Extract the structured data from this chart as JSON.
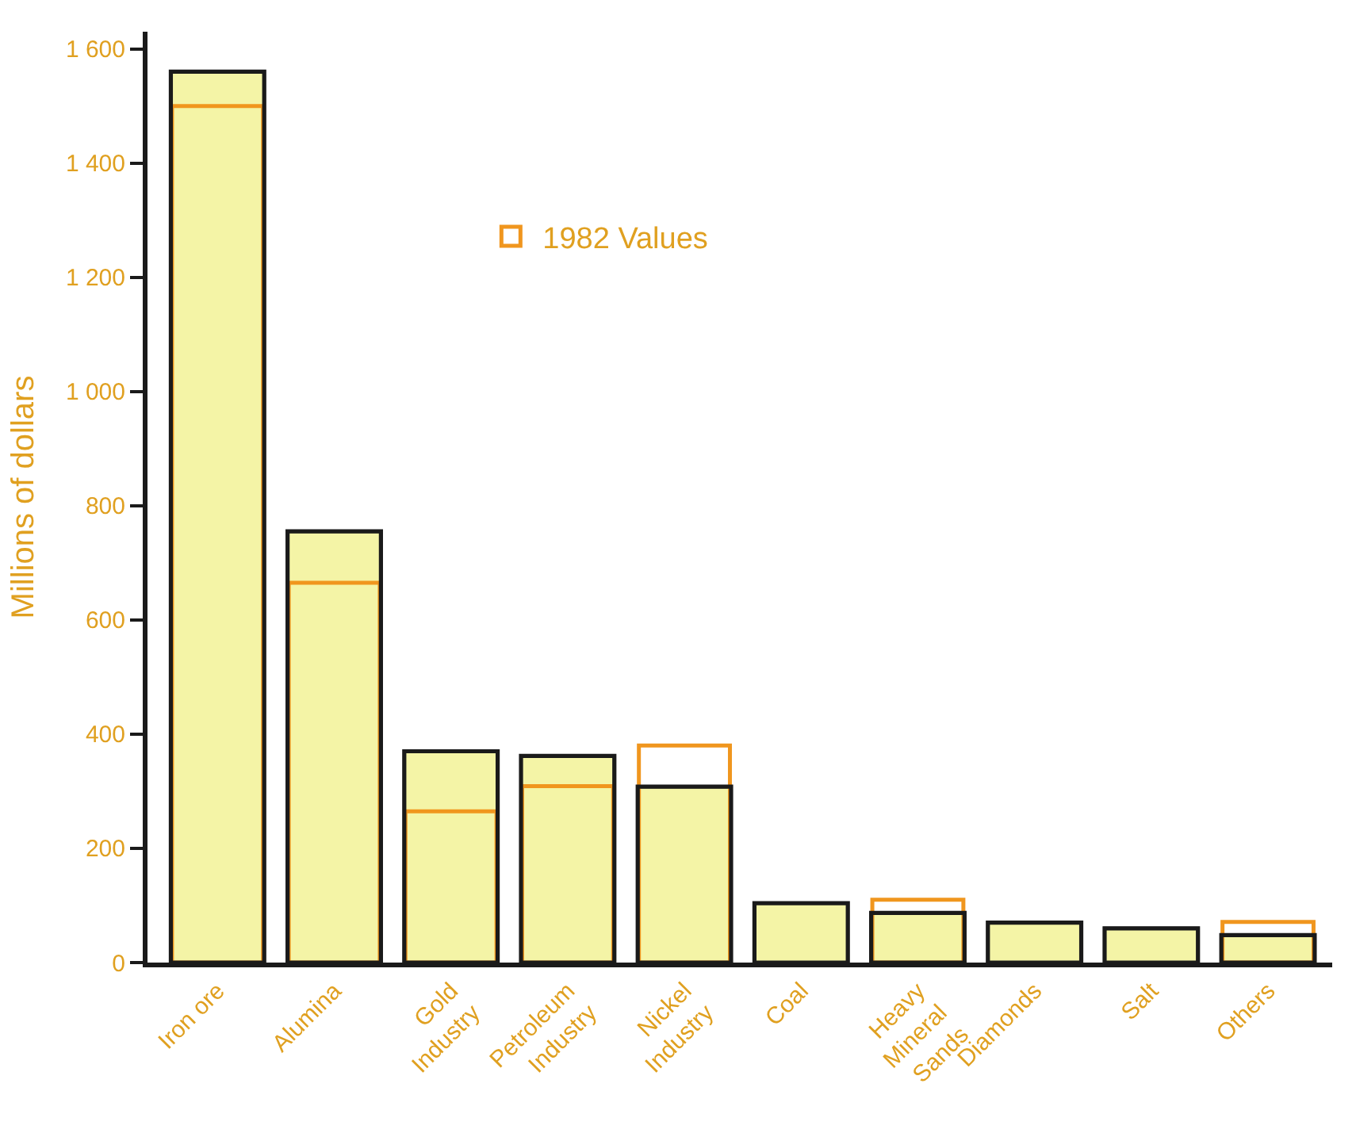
{
  "chart_data": {
    "type": "bar",
    "ylabel": "Millions of dollars",
    "categories": [
      "Iron ore",
      "Alumina",
      "Gold\nIndustry",
      "Petroleum\nIndustry",
      "Nickel\nIndustry",
      "Coal",
      "Heavy\nMineral\nSands",
      "Diamonds",
      "Salt",
      "Others"
    ],
    "series": [
      {
        "color": "#f4f4a6",
        "values": [
          1560,
          755,
          370,
          362,
          308,
          104,
          87,
          70,
          60,
          48
        ]
      },
      {
        "type": "bar",
        "name": "1982 Values",
        "color": "#f0961e",
        "values": [
          1500,
          665,
          265,
          309,
          380,
          null,
          110,
          null,
          null,
          71
        ]
      }
    ],
    "ylim": [
      0,
      1630
    ],
    "yticks": [
      0,
      200,
      400,
      600,
      800,
      {
        "value": 1000,
        "label": "1 000"
      },
      {
        "value": 1200,
        "label": "1 200"
      },
      {
        "value": 1400,
        "label": "1 400"
      },
      {
        "value": 1600,
        "label": "1 600"
      }
    ],
    "legend": "top"
  }
}
